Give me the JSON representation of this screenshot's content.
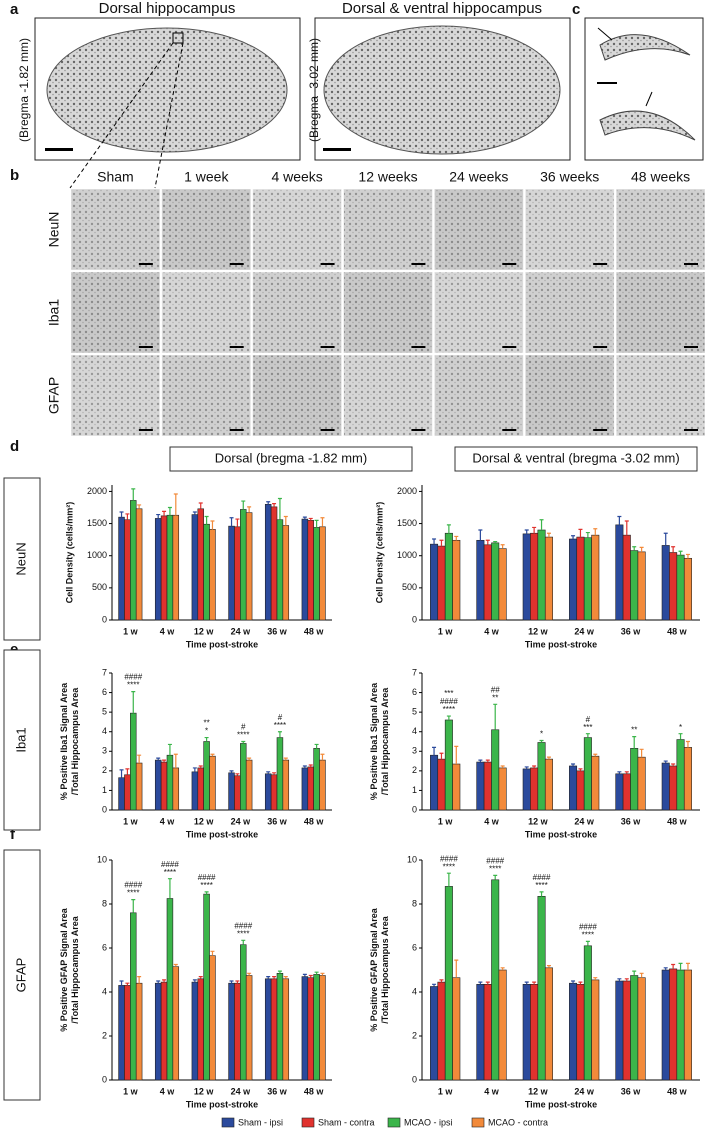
{
  "panel_letters": [
    "a",
    "b",
    "c",
    "d",
    "e",
    "f"
  ],
  "panel_a": {
    "titles": [
      "Dorsal hippocampus",
      "Dorsal & ventral hippocampus"
    ],
    "bregma": [
      "(Bregma -1.82 mm)",
      "(Bregma -3.02 mm)"
    ]
  },
  "panel_b": {
    "columns": [
      "Sham",
      "1 week",
      "4 weeks",
      "12 weeks",
      "24 weeks",
      "36 weeks",
      "48 weeks"
    ],
    "rows": [
      "NeuN",
      "Iba1",
      "GFAP"
    ]
  },
  "column_titles": [
    "Dorsal (bregma -1.82 mm)",
    "Dorsal & ventral (bregma -3.02 mm)"
  ],
  "row_titles": [
    "NeuN",
    "Iba1",
    "GFAP"
  ],
  "legend": [
    {
      "name": "Sham - ipsi",
      "color": "#2b4a9c"
    },
    {
      "name": "Sham - contra",
      "color": "#e0322e"
    },
    {
      "name": "MCAO - ipsi",
      "color": "#3bb54a"
    },
    {
      "name": "MCAO - contra",
      "color": "#f28a3a"
    }
  ],
  "chart_data": [
    {
      "type": "bar",
      "xlabel": "Time post-stroke",
      "ylabel": [
        "Cell Density (cells/mm²)"
      ],
      "categories": [
        "1 w",
        "4 w",
        "12 w",
        "24 w",
        "36 w",
        "48 w"
      ],
      "ylim": [
        0,
        2100
      ],
      "yticks": [
        0,
        500,
        1000,
        1500,
        2000
      ],
      "series": [
        {
          "values": [
            1600,
            1580,
            1640,
            1460,
            1800,
            1570
          ],
          "errors": [
            80,
            60,
            40,
            130,
            40,
            30
          ]
        },
        {
          "values": [
            1560,
            1620,
            1730,
            1450,
            1760,
            1550
          ],
          "errors": [
            90,
            70,
            90,
            120,
            50,
            30
          ]
        },
        {
          "values": [
            1860,
            1630,
            1490,
            1720,
            1560,
            1440
          ],
          "errors": [
            180,
            120,
            120,
            130,
            330,
            110
          ]
        },
        {
          "values": [
            1730,
            1630,
            1410,
            1670,
            1470,
            1450
          ],
          "errors": [
            60,
            330,
            130,
            90,
            140,
            140
          ]
        }
      ],
      "annotations": []
    },
    {
      "type": "bar",
      "xlabel": "Time post-stroke",
      "ylabel": [
        "Cell Density (cells/mm²)"
      ],
      "categories": [
        "1 w",
        "4 w",
        "12 w",
        "24 w",
        "36 w",
        "48 w"
      ],
      "ylim": [
        0,
        2100
      ],
      "yticks": [
        0,
        500,
        1000,
        1500,
        2000
      ],
      "series": [
        {
          "values": [
            1180,
            1240,
            1340,
            1260,
            1480,
            1160
          ],
          "errors": [
            80,
            160,
            60,
            50,
            130,
            190
          ]
        },
        {
          "values": [
            1150,
            1170,
            1350,
            1290,
            1320,
            1050
          ],
          "errors": [
            90,
            70,
            90,
            120,
            220,
            90
          ]
        },
        {
          "values": [
            1350,
            1200,
            1400,
            1280,
            1080,
            1010
          ],
          "errors": [
            130,
            20,
            160,
            80,
            60,
            60
          ]
        },
        {
          "values": [
            1240,
            1110,
            1290,
            1320,
            1060,
            960
          ],
          "errors": [
            60,
            60,
            60,
            100,
            70,
            60
          ]
        }
      ],
      "annotations": []
    },
    {
      "type": "bar",
      "xlabel": "Time post-stroke",
      "ylabel": [
        "% Positive Iba1 Signal Area",
        "/Total Hippocampus Area"
      ],
      "categories": [
        "1 w",
        "4 w",
        "12 w",
        "24 w",
        "36 w",
        "48 w"
      ],
      "ylim": [
        0,
        7
      ],
      "yticks": [
        0,
        1,
        2,
        3,
        4,
        5,
        6,
        7
      ],
      "series": [
        {
          "values": [
            1.65,
            2.55,
            1.95,
            1.9,
            1.85,
            2.15
          ],
          "errors": [
            0.4,
            0.1,
            0.2,
            0.1,
            0.1,
            0.1
          ]
        },
        {
          "values": [
            1.8,
            2.45,
            2.15,
            1.75,
            1.8,
            2.2
          ],
          "errors": [
            0.3,
            0.1,
            0.1,
            0.1,
            0.1,
            0.1
          ]
        },
        {
          "values": [
            4.95,
            2.8,
            3.5,
            3.4,
            3.7,
            3.15
          ],
          "errors": [
            1.1,
            0.55,
            0.2,
            0.1,
            0.3,
            0.2
          ]
        },
        {
          "values": [
            2.4,
            2.15,
            2.75,
            2.55,
            2.55,
            2.55
          ],
          "errors": [
            0.4,
            0.7,
            0.1,
            0.1,
            0.1,
            0.3
          ]
        }
      ],
      "annotations": [
        {
          "category": "1 w",
          "lines": [
            "####",
            "****"
          ]
        },
        {
          "category": "12 w",
          "lines": [
            "**",
            "*"
          ]
        },
        {
          "category": "24 w",
          "lines": [
            "#",
            "****"
          ]
        },
        {
          "category": "36 w",
          "lines": [
            "#",
            "****"
          ]
        }
      ]
    },
    {
      "type": "bar",
      "xlabel": "Time post-stroke",
      "ylabel": [
        "% Positive Iba1 Signal Area",
        "/Total Hippocampus Area"
      ],
      "categories": [
        "1 w",
        "4 w",
        "12 w",
        "24 w",
        "36 w",
        "48 w"
      ],
      "ylim": [
        0,
        7
      ],
      "yticks": [
        0,
        1,
        2,
        3,
        4,
        5,
        6,
        7
      ],
      "series": [
        {
          "values": [
            2.8,
            2.45,
            2.1,
            2.25,
            1.85,
            2.4
          ],
          "errors": [
            0.4,
            0.1,
            0.1,
            0.1,
            0.1,
            0.1
          ]
        },
        {
          "values": [
            2.6,
            2.45,
            2.15,
            2.0,
            1.85,
            2.25
          ],
          "errors": [
            0.3,
            0.1,
            0.1,
            0.1,
            0.1,
            0.1
          ]
        },
        {
          "values": [
            4.6,
            4.1,
            3.45,
            3.7,
            3.15,
            3.6
          ],
          "errors": [
            0.2,
            1.3,
            0.1,
            0.2,
            0.6,
            0.3
          ]
        },
        {
          "values": [
            2.35,
            2.15,
            2.6,
            2.75,
            2.7,
            3.2
          ],
          "errors": [
            0.9,
            0.1,
            0.1,
            0.1,
            0.4,
            0.3
          ]
        }
      ],
      "annotations": [
        {
          "category": "1 w",
          "lines": [
            "***",
            "####",
            "****"
          ]
        },
        {
          "category": "4 w",
          "lines": [
            "##",
            "**"
          ]
        },
        {
          "category": "12 w",
          "lines": [
            "*"
          ]
        },
        {
          "category": "24 w",
          "lines": [
            "#",
            "***"
          ]
        },
        {
          "category": "36 w",
          "lines": [
            "**"
          ]
        },
        {
          "category": "48 w",
          "lines": [
            "*"
          ]
        }
      ]
    },
    {
      "type": "bar",
      "xlabel": "Time post-stroke",
      "ylabel": [
        "% Positive GFAP Signal Area",
        "/Total Hippocampus Area"
      ],
      "categories": [
        "1 w",
        "4 w",
        "12 w",
        "24 w",
        "36 w",
        "48 w"
      ],
      "ylim": [
        0,
        10
      ],
      "yticks": [
        0,
        2,
        4,
        6,
        8,
        10
      ],
      "series": [
        {
          "values": [
            4.3,
            4.4,
            4.45,
            4.4,
            4.6,
            4.7
          ],
          "errors": [
            0.2,
            0.1,
            0.1,
            0.1,
            0.1,
            0.1
          ]
        },
        {
          "values": [
            4.3,
            4.45,
            4.6,
            4.4,
            4.6,
            4.65
          ],
          "errors": [
            0.1,
            0.1,
            0.1,
            0.1,
            0.1,
            0.1
          ]
        },
        {
          "values": [
            7.6,
            8.25,
            8.45,
            6.15,
            4.85,
            4.8
          ],
          "errors": [
            0.6,
            0.9,
            0.1,
            0.2,
            0.1,
            0.1
          ]
        },
        {
          "values": [
            4.4,
            5.15,
            5.65,
            4.75,
            4.6,
            4.75
          ],
          "errors": [
            0.3,
            0.1,
            0.2,
            0.1,
            0.1,
            0.1
          ]
        }
      ],
      "annotations": [
        {
          "category": "1 w",
          "lines": [
            "####",
            "****"
          ]
        },
        {
          "category": "4 w",
          "lines": [
            "####",
            "****"
          ]
        },
        {
          "category": "12 w",
          "lines": [
            "####",
            "****"
          ]
        },
        {
          "category": "24 w",
          "lines": [
            "####",
            "****"
          ]
        }
      ]
    },
    {
      "type": "bar",
      "xlabel": "Time post-stroke",
      "ylabel": [
        "% Positive GFAP Signal Area",
        "/Total Hippocampus Area"
      ],
      "categories": [
        "1 w",
        "4 w",
        "12 w",
        "24 w",
        "36 w",
        "48 w"
      ],
      "ylim": [
        0,
        10
      ],
      "yticks": [
        0,
        2,
        4,
        6,
        8,
        10
      ],
      "series": [
        {
          "values": [
            4.25,
            4.35,
            4.35,
            4.4,
            4.5,
            5.0
          ],
          "errors": [
            0.1,
            0.1,
            0.1,
            0.1,
            0.1,
            0.1
          ]
        },
        {
          "values": [
            4.45,
            4.35,
            4.35,
            4.35,
            4.5,
            5.05
          ],
          "errors": [
            0.1,
            0.1,
            0.1,
            0.1,
            0.1,
            0.2
          ]
        },
        {
          "values": [
            8.8,
            9.1,
            8.35,
            6.1,
            4.75,
            5.0
          ],
          "errors": [
            0.6,
            0.2,
            0.2,
            0.2,
            0.2,
            0.3
          ]
        },
        {
          "values": [
            4.65,
            5.0,
            5.1,
            4.55,
            4.65,
            5.0
          ],
          "errors": [
            0.8,
            0.1,
            0.1,
            0.1,
            0.2,
            0.3
          ]
        }
      ],
      "annotations": [
        {
          "category": "1 w",
          "lines": [
            "####",
            "****"
          ]
        },
        {
          "category": "4 w",
          "lines": [
            "####",
            "****"
          ]
        },
        {
          "category": "12 w",
          "lines": [
            "####",
            "****"
          ]
        },
        {
          "category": "24 w",
          "lines": [
            "####",
            "****"
          ]
        }
      ]
    }
  ]
}
